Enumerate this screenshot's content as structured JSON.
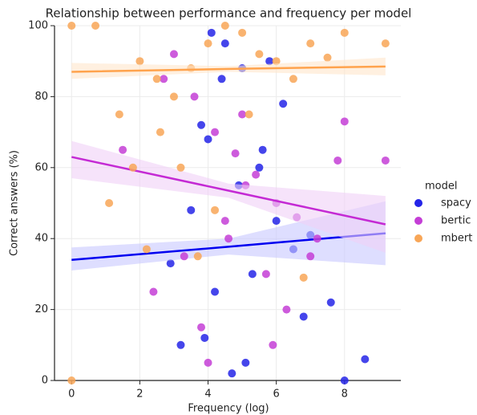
{
  "chart_data": {
    "type": "scatter",
    "title": "Relationship between performance and frequency per model",
    "x_label": "Frequency (log)",
    "y_label": "Correct answers (%)",
    "legend_title": "model",
    "legend_position": "right",
    "xlim": [
      -0.5,
      9.65
    ],
    "ylim": [
      0,
      100
    ],
    "xticks": [
      0,
      2,
      4,
      6,
      8
    ],
    "yticks": [
      0,
      20,
      40,
      60,
      80,
      100
    ],
    "grid": true,
    "series": [
      {
        "name": "spacy",
        "color": "#2424e8",
        "line_color": "#0000f0",
        "band_color": "#c8c8ff",
        "x": [
          4.1,
          4.5,
          5.0,
          3.8,
          5.6,
          6.2,
          4.9,
          3.5,
          7.0,
          8.6,
          5.3,
          4.2,
          6.8,
          3.9,
          5.1,
          4.7,
          7.6,
          2.9,
          6.0,
          5.5,
          4.4,
          3.2,
          8.0,
          6.5,
          4.0,
          5.8
        ],
        "values": [
          98,
          95,
          88,
          72,
          65,
          78,
          55,
          48,
          41,
          6,
          30,
          25,
          18,
          12,
          5,
          2,
          22,
          33,
          45,
          60,
          85,
          10,
          0,
          37,
          68,
          90
        ],
        "fit": {
          "x": [
            0,
            4.6,
            9.2
          ],
          "values": [
            34,
            37.7,
            41.5
          ],
          "lower": [
            31,
            35.5,
            32.5
          ],
          "upper": [
            37.5,
            40,
            50.5
          ]
        }
      },
      {
        "name": "bertic",
        "color": "#c43ed6",
        "line_color": "#c42ad4",
        "band_color": "#f0d0f6",
        "x": [
          3.0,
          3.6,
          4.2,
          4.8,
          5.4,
          6.0,
          6.6,
          7.2,
          7.8,
          9.2,
          2.4,
          3.3,
          4.5,
          5.1,
          5.7,
          6.3,
          4.0,
          3.8,
          5.0,
          7.0,
          8.0,
          1.5,
          2.7,
          4.6,
          5.9
        ],
        "values": [
          92,
          80,
          70,
          64,
          58,
          50,
          46,
          40,
          62,
          62,
          25,
          35,
          45,
          55,
          30,
          20,
          5,
          15,
          75,
          35,
          73,
          65,
          85,
          40,
          10
        ],
        "fit": {
          "x": [
            0,
            4.6,
            9.2
          ],
          "values": [
            63,
            53.5,
            44
          ],
          "lower": [
            57,
            51.5,
            36
          ],
          "upper": [
            67.5,
            55.5,
            52
          ]
        }
      },
      {
        "name": "mbert",
        "color": "#f8a657",
        "line_color": "#ffa34d",
        "band_color": "#ffe6cc",
        "x": [
          0,
          0.7,
          1.4,
          2.0,
          2.5,
          3.0,
          3.5,
          4.0,
          4.5,
          5.0,
          5.5,
          6.0,
          6.5,
          7.0,
          7.5,
          8.0,
          9.2,
          0,
          1.1,
          1.8,
          2.6,
          3.2,
          4.2,
          5.2,
          6.8,
          3.7,
          2.2
        ],
        "values": [
          100,
          100,
          75,
          90,
          85,
          80,
          88,
          95,
          100,
          98,
          92,
          90,
          85,
          95,
          91,
          98,
          95,
          0,
          50,
          60,
          70,
          60,
          48,
          75,
          29,
          35,
          37
        ],
        "fit": {
          "x": [
            0,
            4.6,
            9.2
          ],
          "values": [
            87,
            87.8,
            88.5
          ],
          "lower": [
            85,
            87,
            86
          ],
          "upper": [
            89.5,
            88.6,
            91
          ]
        }
      }
    ]
  }
}
